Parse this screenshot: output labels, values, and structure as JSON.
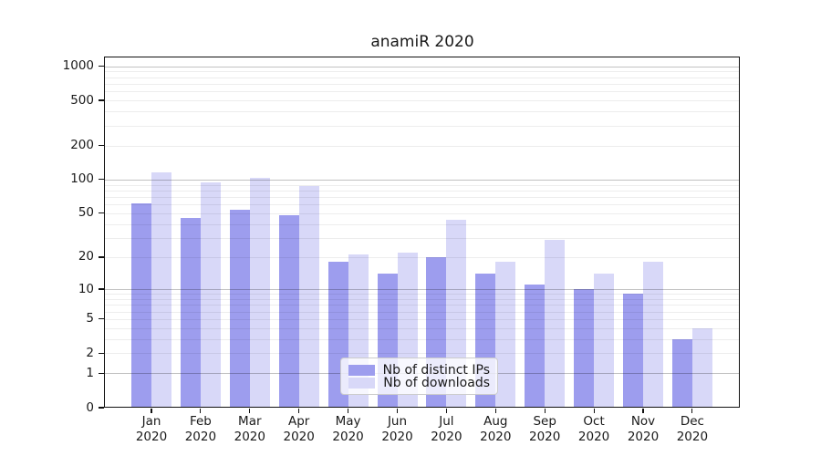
{
  "chart_data": {
    "type": "bar",
    "title": "anamiR 2020",
    "categories": [
      {
        "month": "Jan",
        "year": "2020"
      },
      {
        "month": "Feb",
        "year": "2020"
      },
      {
        "month": "Mar",
        "year": "2020"
      },
      {
        "month": "Apr",
        "year": "2020"
      },
      {
        "month": "May",
        "year": "2020"
      },
      {
        "month": "Jun",
        "year": "2020"
      },
      {
        "month": "Jul",
        "year": "2020"
      },
      {
        "month": "Aug",
        "year": "2020"
      },
      {
        "month": "Sep",
        "year": "2020"
      },
      {
        "month": "Oct",
        "year": "2020"
      },
      {
        "month": "Nov",
        "year": "2020"
      },
      {
        "month": "Dec",
        "year": "2020"
      }
    ],
    "series": [
      {
        "name": "Nb of distinct IPs",
        "color": "#9d9dee",
        "values": [
          61,
          45,
          54,
          48,
          18,
          14,
          20,
          14,
          11,
          10,
          9,
          3
        ]
      },
      {
        "name": "Nb of downloads",
        "color": "#d8d8f8",
        "values": [
          116,
          95,
          103,
          88,
          21,
          22,
          44,
          18,
          29,
          14,
          18,
          4
        ]
      }
    ],
    "y_axis": {
      "scale": "log10(value+1)",
      "tick_labels": [
        "0",
        "1",
        "2",
        "5",
        "10",
        "20",
        "50",
        "100",
        "200",
        "500",
        "1000"
      ],
      "major_gridlines_at": [
        1,
        10,
        100,
        1000
      ],
      "minor_gridlines": "2-9 within each decade"
    },
    "legend": {
      "position": "inside bottom-center"
    },
    "colors": {
      "distinct_ips": "#9d9dee",
      "downloads": "#d8d8f8",
      "major_grid": "rgba(0,0,0,0.24)",
      "minor_grid": "rgba(0,0,0,0.07)"
    }
  }
}
